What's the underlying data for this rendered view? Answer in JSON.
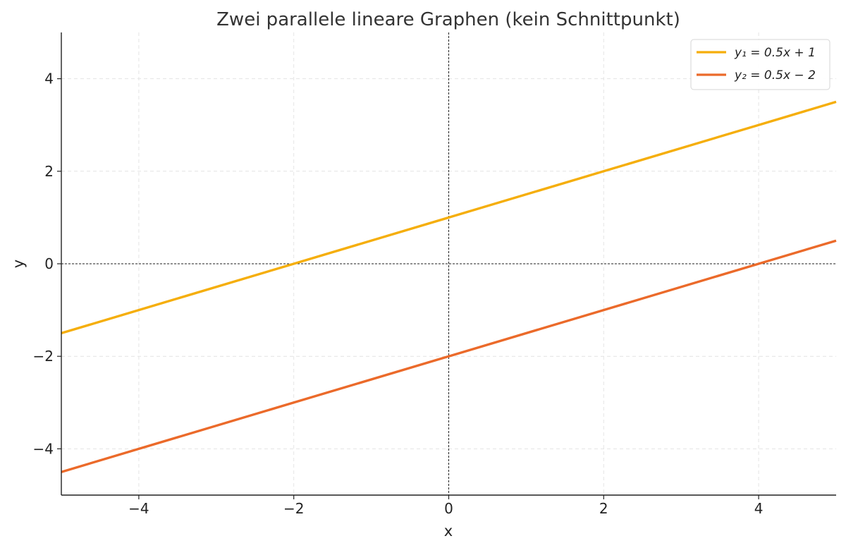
{
  "chart_data": {
    "type": "line",
    "title": "Zwei parallele lineare Graphen (kein Schnittpunkt)",
    "xlabel": "x",
    "ylabel": "y",
    "xlim": [
      -5,
      5
    ],
    "ylim": [
      -5,
      5
    ],
    "xticks": [
      -4,
      -2,
      0,
      2,
      4
    ],
    "yticks": [
      -4,
      -2,
      0,
      2,
      4
    ],
    "xtick_labels": [
      "−4",
      "−2",
      "0",
      "2",
      "4"
    ],
    "ytick_labels": [
      "−4",
      "−2",
      "0",
      "2",
      "4"
    ],
    "grid": true,
    "reference_lines": {
      "x": 0,
      "y": 0
    },
    "legend_position": "top-right",
    "series": [
      {
        "name": "y₁ = 0.5x + 1",
        "color": "#F5AE0B",
        "x": [
          -5,
          -4,
          -2,
          0,
          2,
          4,
          5
        ],
        "y": [
          -1.5,
          -1,
          0,
          1,
          2,
          3,
          3.5
        ]
      },
      {
        "name": "y₂ = 0.5x − 2",
        "color": "#EB6A2A",
        "x": [
          -5,
          -4,
          -2,
          0,
          2,
          4,
          5
        ],
        "y": [
          -4.5,
          -4,
          -3,
          -2,
          -1,
          0,
          0.5
        ]
      }
    ]
  }
}
